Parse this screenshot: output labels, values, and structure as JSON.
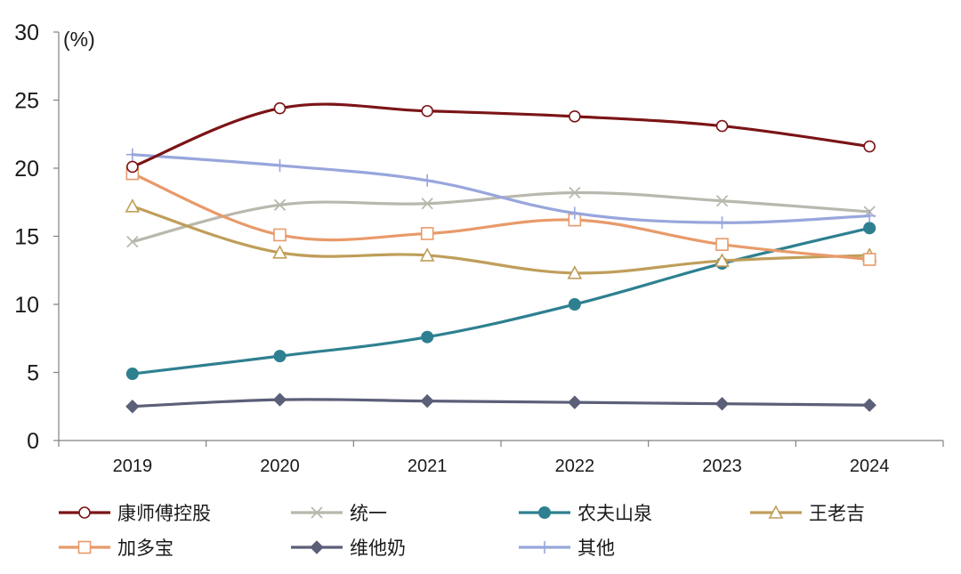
{
  "chart_data": {
    "type": "line",
    "ylabel": "(%)",
    "ylim": [
      0,
      30
    ],
    "yticks": [
      0,
      5,
      10,
      15,
      20,
      25,
      30
    ],
    "categories": [
      "2019",
      "2020",
      "2021",
      "2022",
      "2023",
      "2024"
    ],
    "grid": false,
    "legend_position": "bottom",
    "series": [
      {
        "name": "康师傅控股",
        "values": [
          20.1,
          24.4,
          24.2,
          23.8,
          23.1,
          21.6
        ],
        "color": "#7b1416",
        "marker": "circle-open"
      },
      {
        "name": "统一",
        "values": [
          14.6,
          17.3,
          17.4,
          18.2,
          17.6,
          16.8
        ],
        "color": "#b8b8ae",
        "marker": "x"
      },
      {
        "name": "农夫山泉",
        "values": [
          4.9,
          6.2,
          7.6,
          10.0,
          13.0,
          15.6
        ],
        "color": "#2e8090",
        "marker": "circle-filled"
      },
      {
        "name": "王老吉",
        "values": [
          17.2,
          13.8,
          13.6,
          12.3,
          13.2,
          13.6
        ],
        "color": "#bf9e5a",
        "marker": "triangle-open"
      },
      {
        "name": "加多宝",
        "values": [
          19.6,
          15.1,
          15.2,
          16.2,
          14.4,
          13.3
        ],
        "color": "#e89a6a",
        "marker": "square-open"
      },
      {
        "name": "维他奶",
        "values": [
          2.5,
          3.0,
          2.9,
          2.8,
          2.7,
          2.6
        ],
        "color": "#5c5f78",
        "marker": "diamond-filled"
      },
      {
        "name": "其他",
        "values": [
          21.0,
          20.2,
          19.1,
          16.7,
          16.0,
          16.5
        ],
        "color": "#98a6dc",
        "marker": "plus"
      }
    ]
  }
}
